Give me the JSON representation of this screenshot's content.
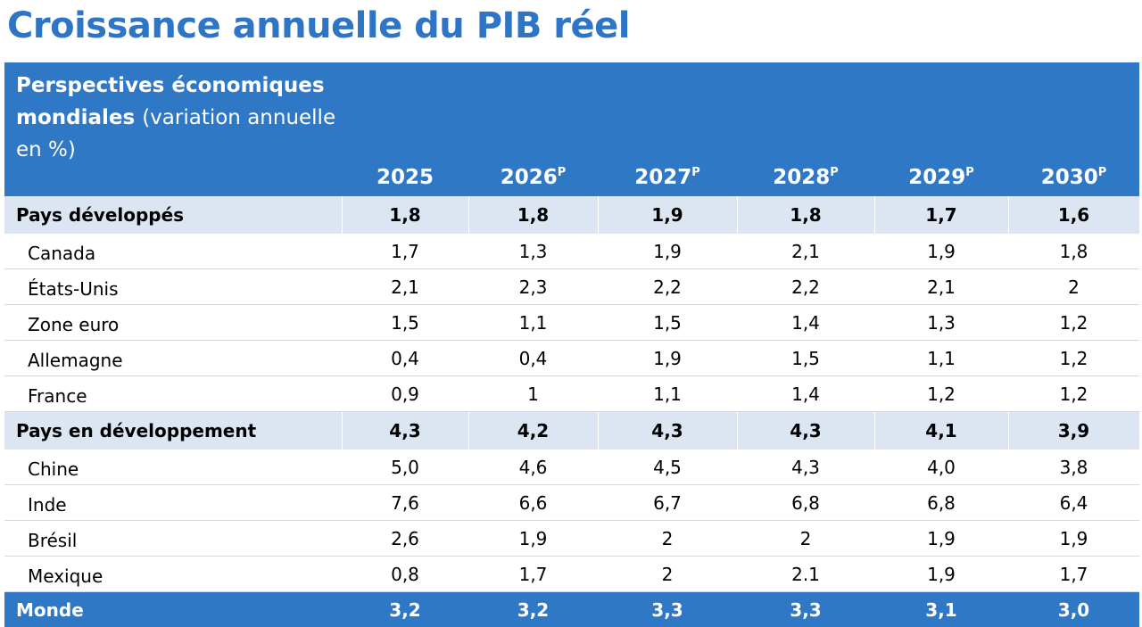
{
  "title": "Croissance annuelle du PIB réel",
  "table": {
    "header": {
      "label_bold": "Perspectives économiques mondiales",
      "label_rest": "(variation annuelle en %)",
      "columns": [
        {
          "year": "2025"
        },
        {
          "year": "2026",
          "note": "P"
        },
        {
          "year": "2027",
          "note": "P"
        },
        {
          "year": "2028",
          "note": "P"
        },
        {
          "year": "2029",
          "note": "P"
        },
        {
          "year": "2030",
          "note": "P"
        }
      ]
    },
    "rows": [
      {
        "style": "group",
        "label": "Pays développés",
        "values": [
          "1,8",
          "1,8",
          "1,9",
          "1,8",
          "1,7",
          "1,6"
        ]
      },
      {
        "style": "item",
        "label": "Canada",
        "values": [
          "1,7",
          "1,3",
          "1,9",
          "2,1",
          "1,9",
          "1,8"
        ]
      },
      {
        "style": "item",
        "label": "États-Unis",
        "values": [
          "2,1",
          "2,3",
          "2,2",
          "2,2",
          "2,1",
          "2"
        ]
      },
      {
        "style": "item",
        "label": "Zone euro",
        "values": [
          "1,5",
          "1,1",
          "1,5",
          "1,4",
          "1,3",
          "1,2"
        ]
      },
      {
        "style": "item",
        "label": "Allemagne",
        "values": [
          "0,4",
          "0,4",
          "1,9",
          "1,5",
          "1,1",
          "1,2"
        ]
      },
      {
        "style": "item",
        "label": "France",
        "values": [
          "0,9",
          "1",
          "1,1",
          "1,4",
          "1,2",
          "1,2"
        ]
      },
      {
        "style": "group",
        "label": "Pays en développement",
        "values": [
          "4,3",
          "4,2",
          "4,3",
          "4,3",
          "4,1",
          "3,9"
        ]
      },
      {
        "style": "item",
        "label": "Chine",
        "values": [
          "5,0",
          "4,6",
          "4,5",
          "4,3",
          "4,0",
          "3,8"
        ]
      },
      {
        "style": "item",
        "label": "Inde",
        "values": [
          "7,6",
          "6,6",
          "6,7",
          "6,8",
          "6,8",
          "6,4"
        ]
      },
      {
        "style": "item",
        "label": "Brésil",
        "values": [
          "2,6",
          "1,9",
          "2",
          "2",
          "1,9",
          "1,9"
        ]
      },
      {
        "style": "item",
        "label": "Mexique",
        "values": [
          "0,8",
          "1,7",
          "2",
          "2.1",
          "1,9",
          "1,7"
        ]
      },
      {
        "style": "total",
        "label": "Monde",
        "values": [
          "3,2",
          "3,2",
          "3,3",
          "3,3",
          "3,1",
          "3,0"
        ]
      }
    ]
  }
}
